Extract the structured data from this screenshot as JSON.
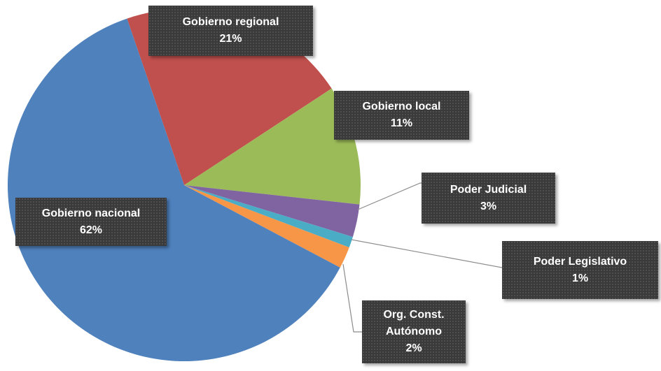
{
  "chart_data": {
    "type": "pie",
    "categories": [
      "Gobierno regional",
      "Gobierno local",
      "Poder Judicial",
      "Poder Legislativo",
      "Org. Const. Autónomo",
      "Gobierno nacional"
    ],
    "values": [
      21,
      11,
      3,
      1,
      2,
      62
    ],
    "value_labels": [
      "21%",
      "11%",
      "3%",
      "1%",
      "2%",
      "62%"
    ],
    "colors": [
      "#c0504d",
      "#9bbb59",
      "#8064a2",
      "#4bacc6",
      "#f79646",
      "#4f81bd"
    ]
  }
}
